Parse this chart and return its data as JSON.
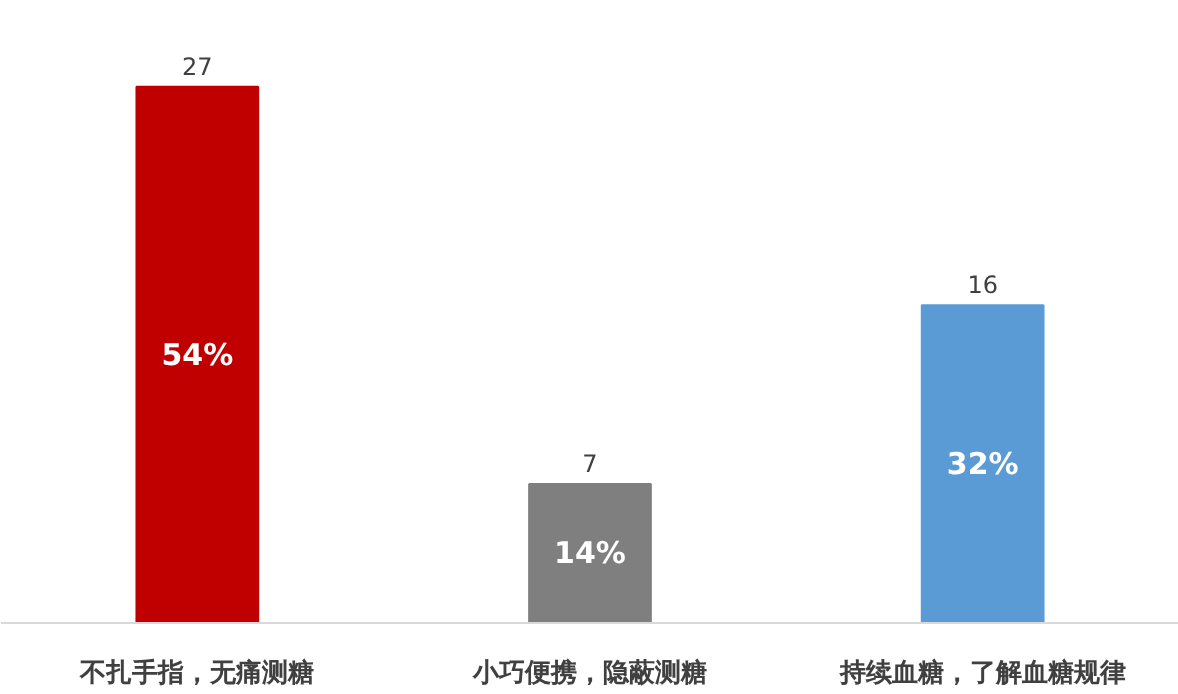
{
  "chart_data": {
    "type": "bar",
    "categories": [
      "不扎手指，无痛测糖",
      "小巧便携，隐蔽测糖",
      "持续血糖，了解血糖规律"
    ],
    "values": [
      27,
      7,
      16
    ],
    "colors": [
      "#c00000",
      "#7f7f7f",
      "#5b9bd5"
    ],
    "tick_labels": "x",
    "data_labels": true,
    "annotations": [
      "54%",
      "14%",
      "32%"
    ]
  }
}
